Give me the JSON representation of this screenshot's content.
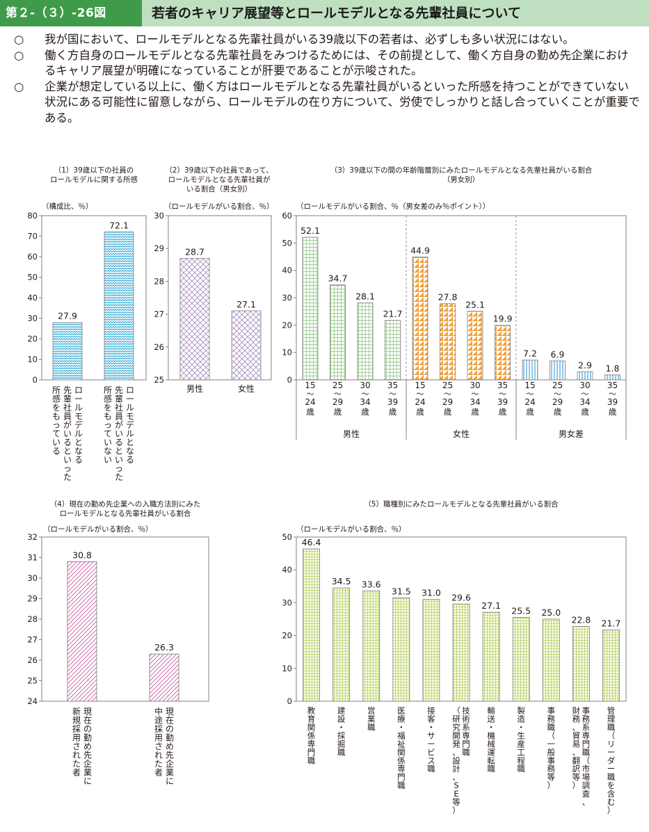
{
  "header": {
    "figure_label": "第２-（３）-26図",
    "title": "若者のキャリア展望等とロールモデルとなる先輩社員について"
  },
  "summary": [
    "我が国において、ロールモデルとなる先輩社員がいる39歳以下の若者は、必ずしも多い状況にはない。",
    "働く方自身のロールモデルとなる先輩社員をみつけるためには、その前提として、働く方自身の勤め先企業におけるキャリア展望が明確になっていることが肝要であることが示唆された。",
    "企業が想定している以上に、働く方はロールモデルとなる先輩社員がいるといった所感を持つことができていない状況にある可能性に留意しながら、ロールモデルの在り方について、労使でしっかりと話し合っていくことが重要である。"
  ],
  "summary_mark": "○",
  "colors": {
    "blue": "#2fa7d3",
    "purple": "#a98bc3",
    "green": "#9ccb92",
    "orange": "#f3a33d",
    "ltblue": "#8fc7e6",
    "pink": "#c65aa0",
    "lime": "#b5cf62",
    "header_bg": "#bfe0c0",
    "label_bg": "#3f9b49"
  },
  "chart_data": [
    {
      "id": "c1",
      "type": "bar",
      "title": [
        "（1）39歳以下の社員の",
        "ロールモデルに関する所感"
      ],
      "ylabel": "（構成比、％）",
      "ylim": [
        0,
        80
      ],
      "yticks": [
        0,
        10,
        20,
        30,
        40,
        50,
        60,
        70,
        80
      ],
      "categories": [
        [
          "ロールモデルとなる",
          "先輩社員がいるといった",
          "所感をもっている"
        ],
        [
          "ロールモデルとなる",
          "先輩社員がいるといった",
          "所感をもっていない"
        ]
      ],
      "values": [
        27.9,
        72.1
      ],
      "value_labels": [
        "27.9",
        "72.1"
      ],
      "grid": false
    },
    {
      "id": "c2",
      "type": "bar",
      "title": [
        "（2）39歳以下の社員であって、",
        "ロールモデルとなる先輩社員が",
        "いる割合（男女別）"
      ],
      "ylabel": "（ロールモデルがいる割合、％）",
      "ylim": [
        25,
        30
      ],
      "yticks": [
        25,
        26,
        27,
        28,
        29,
        30
      ],
      "categories": [
        "男性",
        "女性"
      ],
      "values": [
        28.7,
        27.1
      ],
      "value_labels": [
        "28.7",
        "27.1"
      ],
      "grid": false
    },
    {
      "id": "c3",
      "type": "bar",
      "title": [
        "（3）39歳以下の間の年齢階層別にみたロールモデルとなる先輩社員がいる割合",
        "（男女別）"
      ],
      "ylabel": "（ロールモデルがいる割合、％（男女差のみ％ポイント））",
      "ylim": [
        0,
        60
      ],
      "yticks": [
        0,
        10,
        20,
        30,
        40,
        50,
        60
      ],
      "age_groups": [
        [
          "15",
          "24"
        ],
        [
          "25",
          "29"
        ],
        [
          "30",
          "34"
        ],
        [
          "35",
          "39"
        ]
      ],
      "age_wave": "～",
      "age_unit": "歳",
      "series": [
        {
          "name": "男性",
          "values": [
            52.1,
            34.7,
            28.1,
            21.7
          ],
          "value_labels": [
            "52.1",
            "34.7",
            "28.1",
            "21.7"
          ]
        },
        {
          "name": "女性",
          "values": [
            44.9,
            27.8,
            25.1,
            19.9
          ],
          "value_labels": [
            "44.9",
            "27.8",
            "25.1",
            "19.9"
          ]
        },
        {
          "name": "男女差",
          "values": [
            7.2,
            6.9,
            2.9,
            1.8
          ],
          "value_labels": [
            "7.2",
            "6.9",
            "2.9",
            "1.8"
          ]
        }
      ],
      "grid": false
    },
    {
      "id": "c4",
      "type": "bar",
      "title": [
        "（4）現在の勤め先企業への入職方法別にみた",
        "ロールモデルとなる先輩社員がいる割合"
      ],
      "ylabel": "（ロールモデルがいる割合、％）",
      "ylim": [
        24,
        32
      ],
      "yticks": [
        24,
        25,
        26,
        27,
        28,
        29,
        30,
        31,
        32
      ],
      "categories": [
        [
          "現在の勤め先企業に",
          "新規採用された者"
        ],
        [
          "現在の勤め先企業に",
          "中途採用された者"
        ]
      ],
      "values": [
        30.8,
        26.3
      ],
      "value_labels": [
        "30.8",
        "26.3"
      ],
      "grid": false
    },
    {
      "id": "c5",
      "type": "bar",
      "title": [
        "（5）職種別にみたロールモデルとなる先輩社員がいる割合"
      ],
      "ylabel": "（ロールモデルがいる割合、％）",
      "ylim": [
        0,
        50
      ],
      "yticks": [
        0,
        10,
        20,
        30,
        40,
        50
      ],
      "categories": [
        [
          "教育関係専門職"
        ],
        [
          "建設・採掘職"
        ],
        [
          "営業職"
        ],
        [
          "医療・福祉関係専門職"
        ],
        [
          "接客・サービス職"
        ],
        [
          "技術系専門職",
          "（研究開発、設計、SE等）"
        ],
        [
          "輸送・機械運転職"
        ],
        [
          "製造・生産工程職"
        ],
        [
          "事務職（一般事務等）"
        ],
        [
          "事務系専門職（市場調査、",
          "財務、貿易、翻訳等）"
        ],
        [
          "管理職（リーダー職を含む）"
        ]
      ],
      "values": [
        46.4,
        34.5,
        33.6,
        31.5,
        31.0,
        29.6,
        27.1,
        25.5,
        25.0,
        22.8,
        21.7
      ],
      "value_labels": [
        "46.4",
        "34.5",
        "33.6",
        "31.5",
        "31.0",
        "29.6",
        "27.1",
        "25.5",
        "25.0",
        "22.8",
        "21.7"
      ],
      "grid": false
    }
  ]
}
